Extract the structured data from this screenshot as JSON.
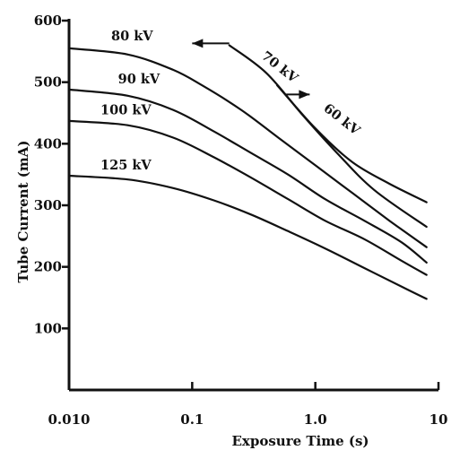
{
  "chart_data": {
    "type": "line",
    "xlabel": "Exposure Time (s)",
    "ylabel": "Tube Current (mA)",
    "x_scale": "log",
    "xlim": [
      0.01,
      10
    ],
    "ylim": [
      0,
      600
    ],
    "x_ticks": [
      {
        "value": 0.01,
        "label": "0.010"
      },
      {
        "value": 0.1,
        "label": "0.1"
      },
      {
        "value": 1,
        "label": "1.0"
      },
      {
        "value": 10,
        "label": "10"
      }
    ],
    "y_ticks": [
      {
        "value": 100,
        "label": "100"
      },
      {
        "value": 200,
        "label": "200"
      },
      {
        "value": 300,
        "label": "300"
      },
      {
        "value": 400,
        "label": "400"
      },
      {
        "value": 500,
        "label": "500"
      },
      {
        "value": 600,
        "label": "600"
      }
    ],
    "grid": false,
    "series": [
      {
        "name": "60 kV",
        "points": [
          [
            0.49,
            495
          ],
          [
            1,
            425
          ],
          [
            2,
            370
          ],
          [
            4,
            335
          ],
          [
            8,
            305
          ]
        ]
      },
      {
        "name": "70 kV",
        "points": [
          [
            0.2,
            560
          ],
          [
            0.4,
            515
          ],
          [
            0.8,
            445
          ],
          [
            1.5,
            385
          ],
          [
            3,
            325
          ],
          [
            8,
            265
          ]
        ]
      },
      {
        "name": "80 kV",
        "points": [
          [
            0.01,
            555
          ],
          [
            0.03,
            545
          ],
          [
            0.07,
            520
          ],
          [
            0.12,
            495
          ],
          [
            0.25,
            455
          ],
          [
            0.5,
            410
          ],
          [
            1,
            365
          ],
          [
            2,
            320
          ],
          [
            4,
            275
          ],
          [
            8,
            232
          ]
        ]
      },
      {
        "name": "90 kV",
        "points": [
          [
            0.01,
            488
          ],
          [
            0.03,
            478
          ],
          [
            0.07,
            455
          ],
          [
            0.15,
            420
          ],
          [
            0.3,
            385
          ],
          [
            0.6,
            350
          ],
          [
            1.2,
            310
          ],
          [
            2.5,
            275
          ],
          [
            5,
            240
          ],
          [
            8,
            207
          ]
        ]
      },
      {
        "name": "100 kV",
        "points": [
          [
            0.01,
            437
          ],
          [
            0.03,
            430
          ],
          [
            0.07,
            410
          ],
          [
            0.15,
            378
          ],
          [
            0.3,
            345
          ],
          [
            0.6,
            310
          ],
          [
            1.2,
            275
          ],
          [
            2.5,
            245
          ],
          [
            5,
            210
          ],
          [
            8,
            187
          ]
        ]
      },
      {
        "name": "125 kV",
        "points": [
          [
            0.01,
            348
          ],
          [
            0.03,
            342
          ],
          [
            0.07,
            328
          ],
          [
            0.15,
            308
          ],
          [
            0.3,
            285
          ],
          [
            0.6,
            258
          ],
          [
            1.2,
            230
          ],
          [
            2.5,
            198
          ],
          [
            5,
            168
          ],
          [
            8,
            148
          ]
        ]
      }
    ],
    "annotations": [
      {
        "text": "80 kV",
        "x": 0.022,
        "y": 568,
        "rotate": 0
      },
      {
        "text": "90 kV",
        "x": 0.025,
        "y": 498,
        "rotate": 0
      },
      {
        "text": "100 kV",
        "x": 0.018,
        "y": 448,
        "rotate": 0
      },
      {
        "text": "125 kV",
        "x": 0.018,
        "y": 358,
        "rotate": 0
      },
      {
        "text": "70 kV",
        "x": 0.36,
        "y": 540,
        "rotate": 38
      },
      {
        "text": "60 kV",
        "x": 1.15,
        "y": 455,
        "rotate": 38
      }
    ],
    "arrows": [
      {
        "from": [
          0.2,
          563
        ],
        "to": [
          0.1,
          563
        ]
      },
      {
        "from": [
          0.58,
          480
        ],
        "to": [
          0.9,
          480
        ]
      }
    ]
  }
}
